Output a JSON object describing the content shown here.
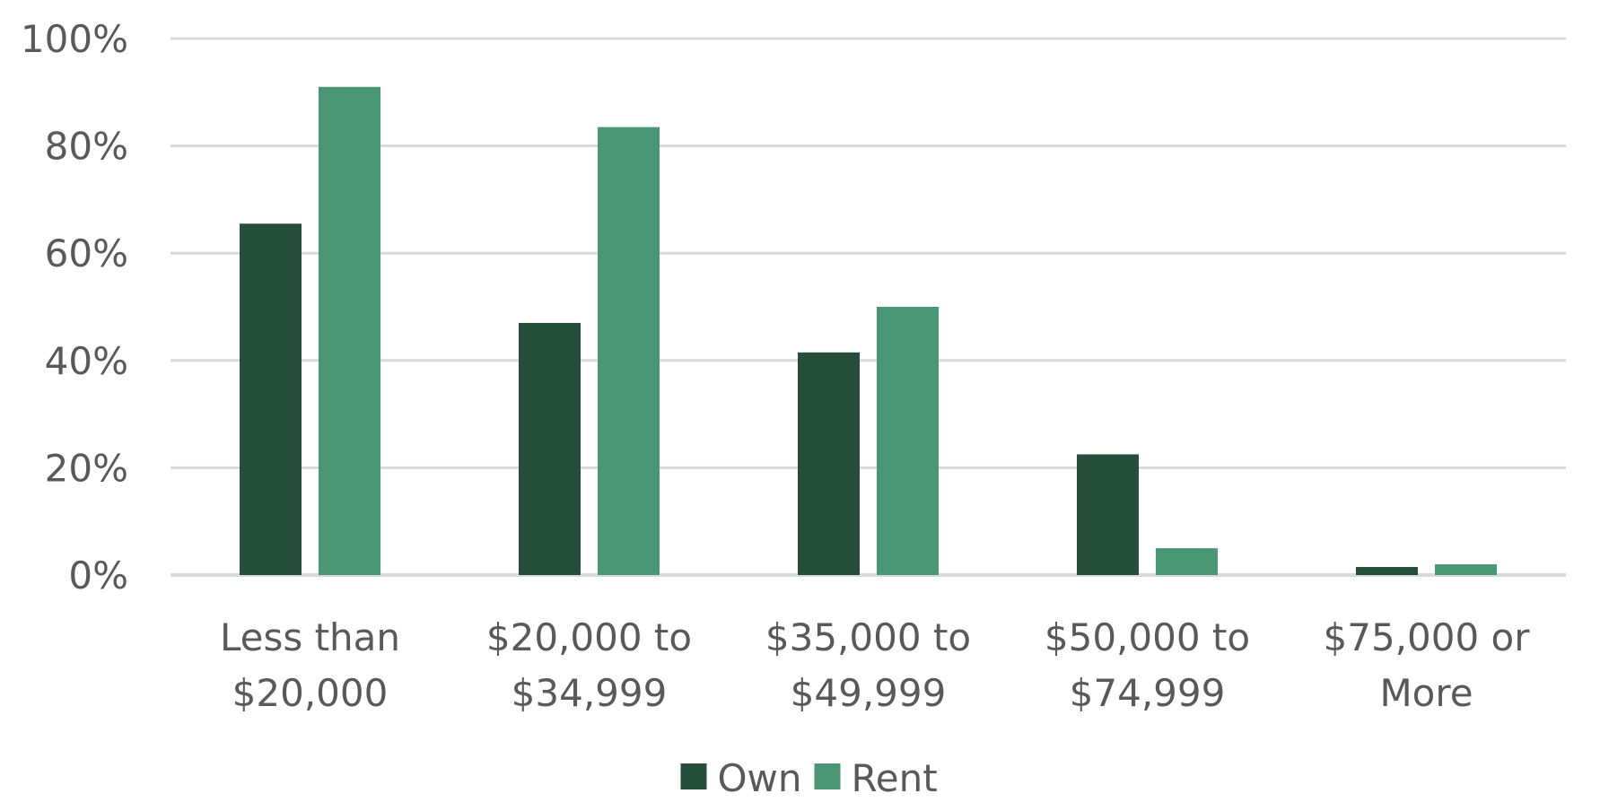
{
  "chart_data": {
    "type": "bar",
    "categories": [
      [
        "Less than",
        "$20,000"
      ],
      [
        "$20,000 to",
        "$34,999"
      ],
      [
        "$35,000 to",
        "$49,999"
      ],
      [
        "$50,000 to",
        "$74,999"
      ],
      [
        "$75,000 or",
        "More"
      ]
    ],
    "series": [
      {
        "name": "Own",
        "color": "#254f3a",
        "values": [
          65.5,
          47,
          41.5,
          22.5,
          1.5
        ]
      },
      {
        "name": "Rent",
        "color": "#4a9775",
        "values": [
          91,
          83.5,
          50,
          5,
          2
        ]
      }
    ],
    "ylim": [
      0,
      100
    ],
    "yticks": [
      0,
      20,
      40,
      60,
      80,
      100
    ],
    "ytick_labels": [
      "0%",
      "20%",
      "40%",
      "60%",
      "80%",
      "100%"
    ],
    "grid": true,
    "legend_position": "bottom",
    "title": "",
    "xlabel": "",
    "ylabel": ""
  }
}
